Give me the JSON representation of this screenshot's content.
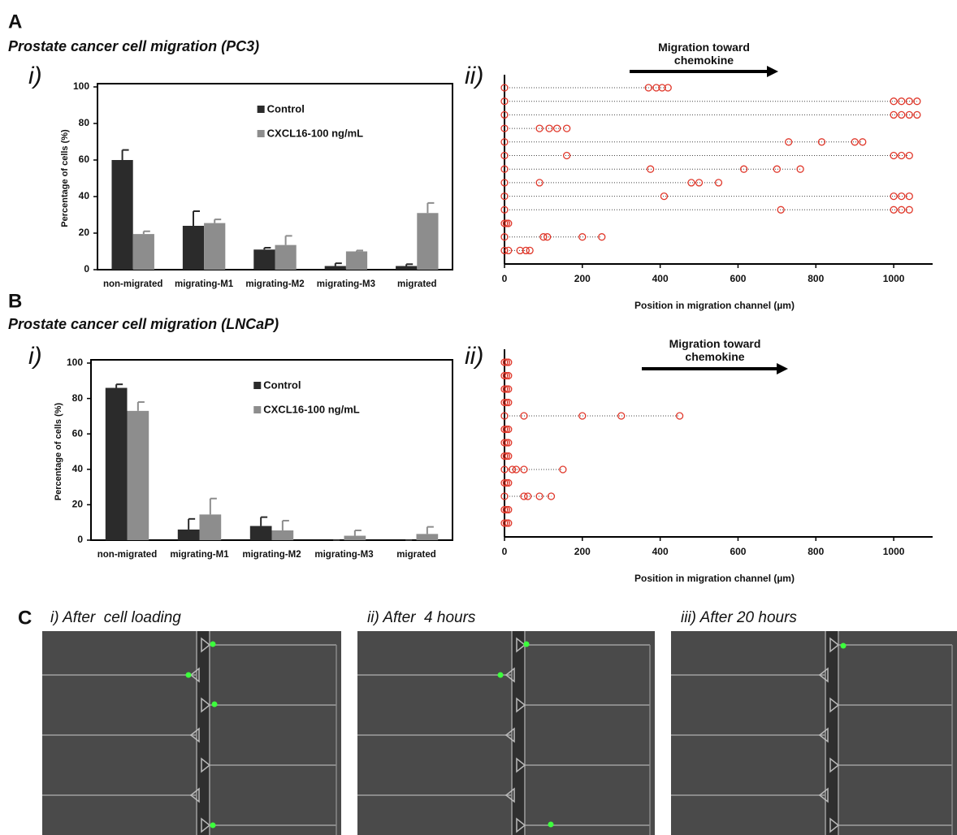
{
  "panels": [
    {
      "letter": "A",
      "title": "Prostate cancer cell migration (PC3)"
    },
    {
      "letter": "B",
      "title": "Prostate cancer cell migration (LNCaP)"
    },
    {
      "letter": "C",
      "images": [
        {
          "caption": "i) After  cell loading"
        },
        {
          "caption": "ii) After  4 hours"
        },
        {
          "caption": "iii) After 20 hours"
        }
      ]
    }
  ],
  "chart_data": [
    {
      "type": "bar",
      "label": "i)",
      "ylabel": "Percentage of cells (%)",
      "categories": [
        "non-migrated",
        "migrating-M1",
        "migrating-M2",
        "migrating-M3",
        "migrated"
      ],
      "series": [
        {
          "name": "Control",
          "color": "#2b2b2b",
          "values": [
            60,
            24,
            11,
            2,
            2
          ],
          "errors": [
            5.5,
            8,
            1,
            1.5,
            1
          ]
        },
        {
          "name": "CXCL16-100 ng/mL",
          "color": "#8d8d8d",
          "values": [
            19.5,
            25.5,
            13.5,
            10,
            31
          ],
          "errors": [
            1.5,
            2,
            5,
            0.5,
            5.5
          ]
        }
      ],
      "ylim": [
        0,
        100
      ],
      "yticks": [
        0,
        20,
        40,
        60,
        80,
        100
      ],
      "legend": "upper right"
    },
    {
      "type": "strip",
      "label": "ii)",
      "annotation": "Migration toward chemokine",
      "xlabel": "Position in migration channel (µm)",
      "color": "#e0382b",
      "xlim": [
        0,
        1100
      ],
      "xticks": [
        0,
        200,
        400,
        600,
        800,
        1000
      ],
      "rows": [
        [
          0,
          370,
          390,
          405,
          420
        ],
        [
          0,
          1000,
          1020,
          1040,
          1060
        ],
        [
          0,
          1000,
          1020,
          1040,
          1060
        ],
        [
          0,
          90,
          115,
          135,
          160
        ],
        [
          0,
          730,
          815,
          900,
          920
        ],
        [
          0,
          160,
          1000,
          1020,
          1040
        ],
        [
          0,
          375,
          615,
          700,
          760
        ],
        [
          0,
          90,
          480,
          500,
          550
        ],
        [
          0,
          410,
          1000,
          1020,
          1040
        ],
        [
          0,
          710,
          1000,
          1020,
          1040
        ],
        [
          0,
          5,
          10
        ],
        [
          0,
          100,
          110,
          200,
          250
        ],
        [
          0,
          10,
          40,
          55,
          65
        ]
      ]
    },
    {
      "type": "bar",
      "label": "i)",
      "ylabel": "Percentage of cells (%)",
      "categories": [
        "non-migrated",
        "migrating-M1",
        "migrating-M2",
        "migrating-M3",
        "migrated"
      ],
      "series": [
        {
          "name": "Control",
          "color": "#2b2b2b",
          "values": [
            86,
            6,
            8,
            0,
            0
          ],
          "errors": [
            2,
            6,
            5,
            0,
            0
          ]
        },
        {
          "name": "CXCL16-100 ng/mL",
          "color": "#8d8d8d",
          "values": [
            73,
            14.5,
            5.5,
            2.5,
            3.5
          ],
          "errors": [
            5,
            9,
            5.5,
            3,
            4
          ]
        }
      ],
      "ylim": [
        0,
        100
      ],
      "yticks": [
        0,
        20,
        40,
        60,
        80,
        100
      ],
      "legend": "upper right"
    },
    {
      "type": "strip",
      "label": "ii)",
      "annotation": "Migration toward chemokine",
      "xlabel": "Position in migration channel (µm)",
      "color": "#e0382b",
      "xlim": [
        0,
        1100
      ],
      "xticks": [
        0,
        200,
        400,
        600,
        800,
        1000
      ],
      "rows": [
        [
          0,
          5,
          10
        ],
        [
          0,
          5,
          10
        ],
        [
          0,
          5,
          10
        ],
        [
          0,
          5,
          10
        ],
        [
          0,
          50,
          200,
          300,
          450
        ],
        [
          0,
          5,
          10
        ],
        [
          0,
          5,
          10
        ],
        [
          0,
          5,
          10
        ],
        [
          0,
          20,
          30,
          50,
          150
        ],
        [
          0,
          5,
          10
        ],
        [
          0,
          50,
          60,
          90,
          120
        ],
        [
          0,
          5,
          10
        ],
        [
          0,
          5,
          10
        ]
      ]
    }
  ]
}
